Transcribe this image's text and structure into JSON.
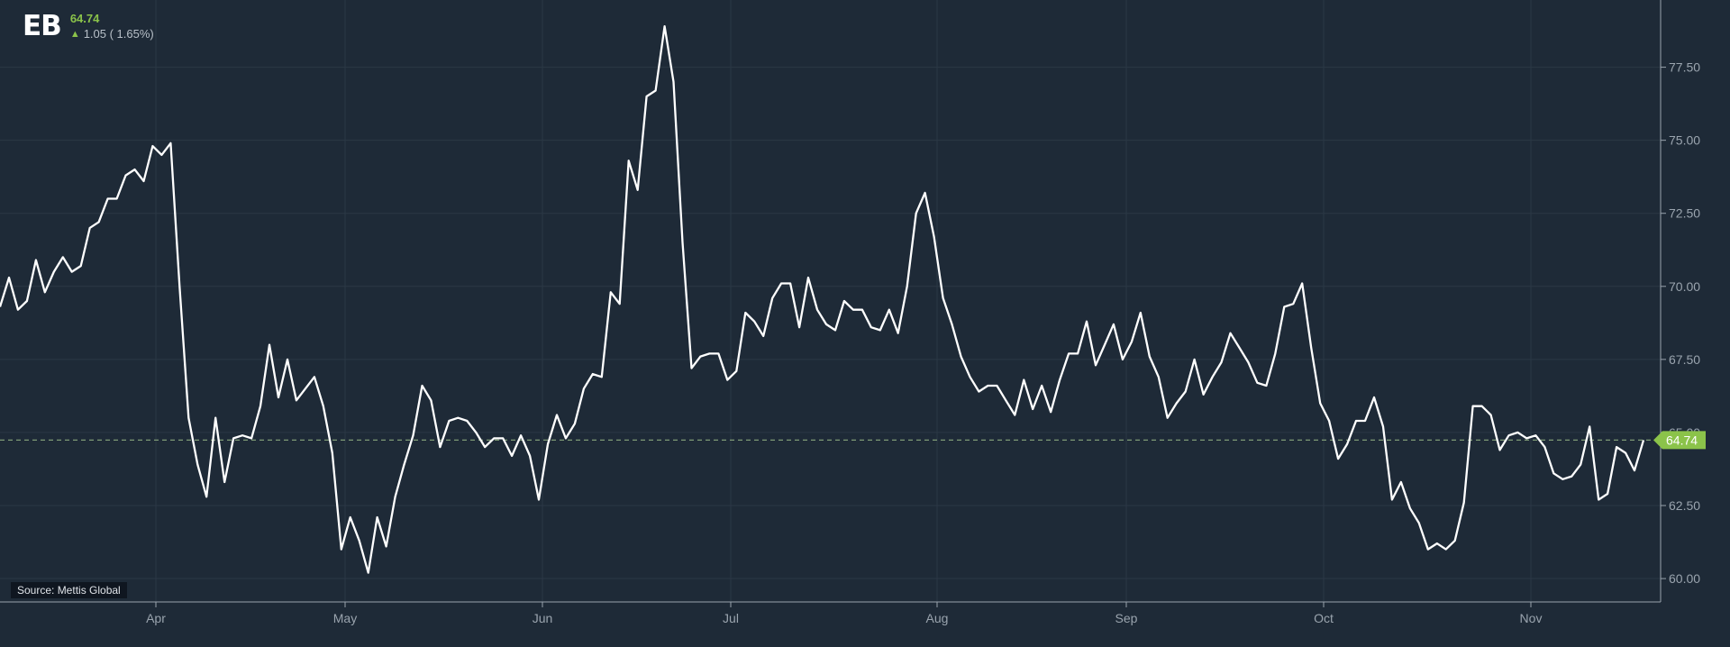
{
  "header": {
    "ticker": "EB",
    "price": "64.74",
    "change_text": "1.05 ( 1.65%)",
    "change_direction_icon": "arrow-up-icon"
  },
  "source": "Source: Mettis Global",
  "last_price_label": "64.74",
  "colors": {
    "background": "#1e2a37",
    "line": "#ffffff",
    "grid": "#2b3845",
    "axis": "#9aa4ae",
    "accent": "#8bc34a",
    "price_line": "#7f9a76"
  },
  "chart_data": {
    "type": "line",
    "title": "",
    "xlabel": "",
    "ylabel": "",
    "x_ticks": [
      "Apr",
      "May",
      "Jun",
      "Jul",
      "Aug",
      "Sep",
      "Oct",
      "Nov"
    ],
    "y_ticks": [
      "60.00",
      "62.50",
      "65.00",
      "67.50",
      "70.00",
      "72.50",
      "75.00",
      "77.50"
    ],
    "ylim": [
      59.2,
      79.8
    ],
    "y_axis_position": "right",
    "grid": true,
    "last_price": 64.74,
    "series": [
      {
        "values": [
          69.3,
          70.3,
          69.2,
          69.5,
          70.9,
          69.8,
          70.5,
          71.0,
          70.5,
          70.7,
          72.0,
          72.2,
          73.0,
          73.0,
          73.8,
          74.0,
          73.6,
          74.8,
          74.5,
          74.9,
          70.0,
          65.5,
          63.9,
          62.8,
          65.5,
          63.3,
          64.8,
          64.9,
          64.8,
          65.9,
          68.0,
          66.2,
          67.5,
          66.1,
          66.5,
          66.9,
          65.9,
          64.3,
          61.0,
          62.1,
          61.3,
          60.2,
          62.1,
          61.1,
          62.8,
          63.9,
          64.9,
          66.6,
          66.1,
          64.5,
          65.4,
          65.5,
          65.4,
          65.0,
          64.5,
          64.8,
          64.8,
          64.2,
          64.9,
          64.2,
          62.7,
          64.6,
          65.6,
          64.8,
          65.3,
          66.5,
          67.0,
          66.9,
          69.8,
          69.4,
          74.3,
          73.3,
          76.5,
          76.7,
          78.9,
          77.0,
          71.5,
          67.2,
          67.6,
          67.7,
          67.7,
          66.8,
          67.1,
          69.1,
          68.8,
          68.3,
          69.6,
          70.1,
          70.1,
          68.6,
          70.3,
          69.2,
          68.7,
          68.5,
          69.5,
          69.2,
          69.2,
          68.6,
          68.5,
          69.2,
          68.4,
          70.0,
          72.5,
          73.2,
          71.7,
          69.6,
          68.7,
          67.6,
          66.9,
          66.4,
          66.6,
          66.6,
          66.1,
          65.6,
          66.8,
          65.8,
          66.6,
          65.7,
          66.8,
          67.7,
          67.7,
          68.8,
          67.3,
          68.0,
          68.7,
          67.5,
          68.1,
          69.1,
          67.6,
          66.9,
          65.5,
          66.0,
          66.4,
          67.5,
          66.3,
          66.9,
          67.4,
          68.4,
          67.9,
          67.4,
          66.7,
          66.6,
          67.7,
          69.3,
          69.4,
          70.1,
          67.9,
          66.0,
          65.4,
          64.1,
          64.6,
          65.4,
          65.4,
          66.2,
          65.2,
          62.7,
          63.3,
          62.4,
          61.9,
          61.0,
          61.2,
          61.0,
          61.3,
          62.6,
          65.9,
          65.9,
          65.6,
          64.4,
          64.9,
          65.0,
          64.8,
          64.9,
          64.5,
          63.6,
          63.4,
          63.5,
          63.9,
          65.2,
          62.7,
          62.9,
          64.5,
          64.3,
          63.7,
          64.74
        ]
      }
    ]
  }
}
